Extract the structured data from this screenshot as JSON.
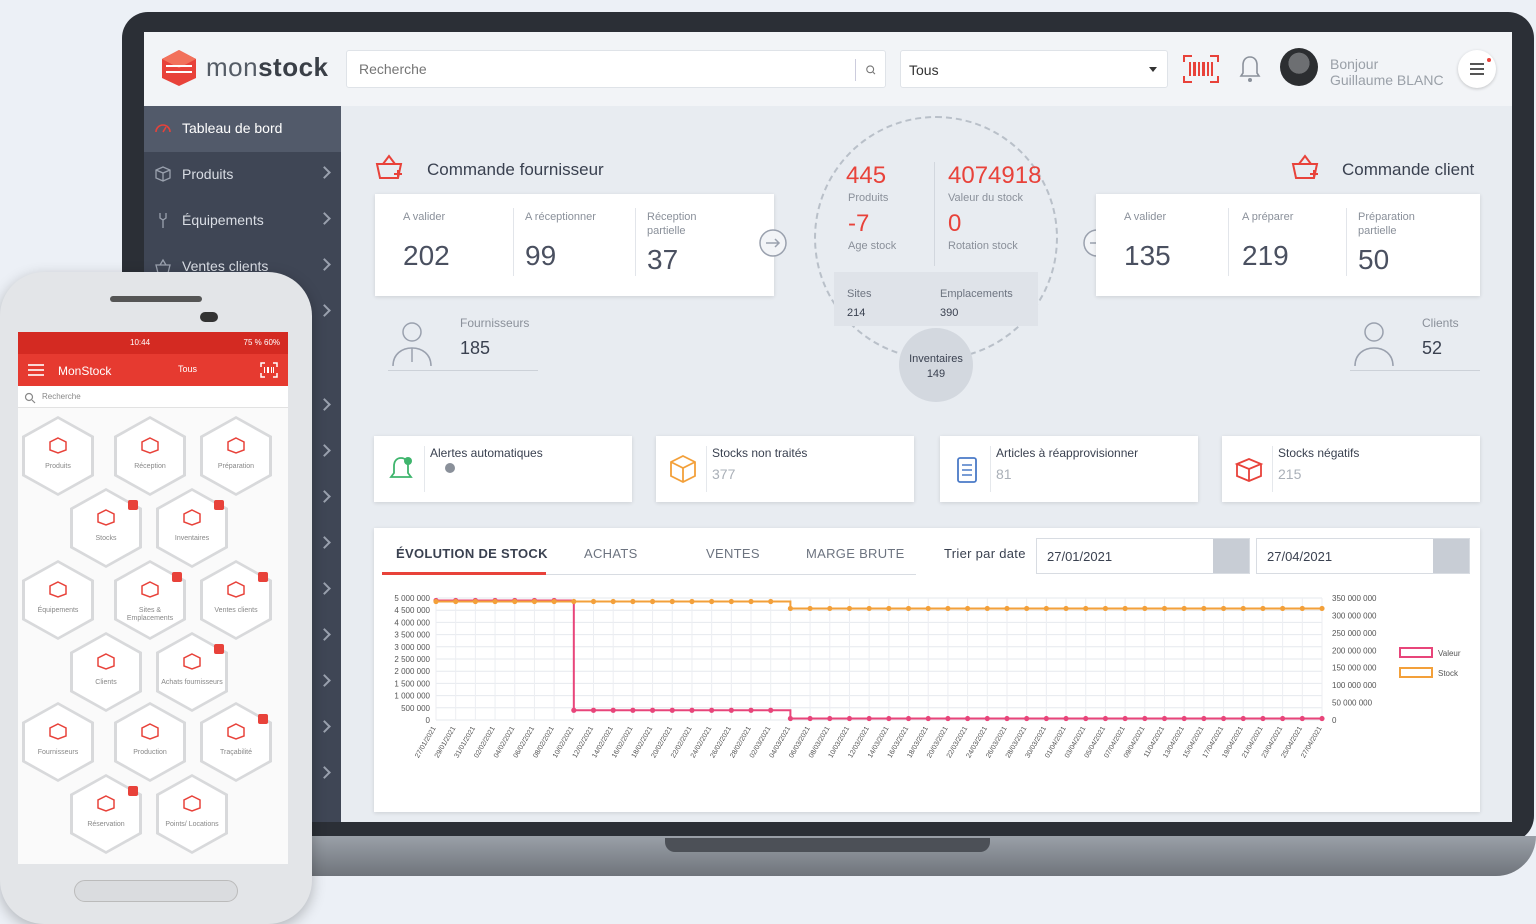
{
  "brand": {
    "name_light": "mon",
    "name_bold": "stock",
    "accent": "#e8423a"
  },
  "topbar": {
    "search_placeholder": "Recherche",
    "select_value": "Tous",
    "greeting_line1": "Bonjour",
    "greeting_line2": "Guillaume BLANC",
    "icons": [
      "barcode-scan-icon",
      "bell-icon",
      "menu-icon"
    ]
  },
  "sidebar": {
    "items": [
      {
        "label": "Tableau de bord",
        "icon": "gauge-icon",
        "active": true
      },
      {
        "label": "Produits",
        "icon": "box-icon"
      },
      {
        "label": "Équipements",
        "icon": "tool-icon"
      },
      {
        "label": "Ventes clients",
        "icon": "basket-icon"
      }
    ]
  },
  "supplier_orders": {
    "title": "Commande fournisseur",
    "kpis": [
      {
        "label": "A valider",
        "value": "202"
      },
      {
        "label": "A réceptionner",
        "value": "99"
      },
      {
        "label": "Réception partielle",
        "value": "37"
      }
    ],
    "suppliers": {
      "label": "Fournisseurs",
      "value": "185"
    }
  },
  "center": {
    "products": {
      "value": "445",
      "label": "Produits"
    },
    "stock_value": {
      "value": "4074918",
      "label": "Valeur du stock"
    },
    "stock_age": {
      "value": "-7",
      "label": "Age stock"
    },
    "rotation": {
      "value": "0",
      "label": "Rotation stock"
    },
    "sites": {
      "label": "Sites",
      "value": "214"
    },
    "locations": {
      "label": "Emplacements",
      "value": "390"
    },
    "inventories": {
      "label": "Inventaires",
      "value": "149"
    }
  },
  "client_orders": {
    "title": "Commande client",
    "kpis": [
      {
        "label": "A valider",
        "value": "135"
      },
      {
        "label": "A préparer",
        "value": "219"
      },
      {
        "label": "Préparation partielle",
        "value": "50"
      }
    ],
    "clients": {
      "label": "Clients",
      "value": "52"
    }
  },
  "alerts": [
    {
      "label": "Alertes automatiques",
      "value": "",
      "icon": "bell-alert-icon"
    },
    {
      "label": "Stocks non traités",
      "value": "377",
      "icon": "package-icon"
    },
    {
      "label": "Articles à réapprovisionner",
      "value": "81",
      "icon": "clipboard-icon"
    },
    {
      "label": "Stocks négatifs",
      "value": "215",
      "icon": "open-box-icon"
    }
  ],
  "chart_panel": {
    "tabs": [
      "ÉVOLUTION DE STOCK",
      "ACHATS",
      "VENTES",
      "MARGE BRUTE"
    ],
    "sort_label": "Trier par date",
    "date_from": "27/01/2021",
    "date_to": "27/04/2021"
  },
  "chart_data": {
    "type": "line",
    "x": [
      "27/01/2021",
      "29/01/2021",
      "31/01/2021",
      "02/02/2021",
      "04/02/2021",
      "06/02/2021",
      "08/02/2021",
      "10/02/2021",
      "12/02/2021",
      "14/02/2021",
      "16/02/2021",
      "18/02/2021",
      "20/02/2021",
      "22/02/2021",
      "24/02/2021",
      "26/02/2021",
      "28/02/2021",
      "02/03/2021",
      "04/03/2021",
      "06/03/2021",
      "08/03/2021",
      "10/03/2021",
      "12/03/2021",
      "14/03/2021",
      "16/03/2021",
      "18/03/2021",
      "20/03/2021",
      "22/03/2021",
      "24/03/2021",
      "26/03/2021",
      "28/03/2021",
      "30/03/2021",
      "01/04/2021",
      "03/04/2021",
      "05/04/2021",
      "07/04/2021",
      "09/04/2021",
      "11/04/2021",
      "13/04/2021",
      "15/04/2021",
      "17/04/2021",
      "19/04/2021",
      "21/04/2021",
      "23/04/2021",
      "25/04/2021",
      "27/04/2021"
    ],
    "series": [
      {
        "name": "Valeur",
        "color": "#e8457a",
        "axis": "left",
        "values": [
          4900000,
          4900000,
          4900000,
          4900000,
          4900000,
          4900000,
          4900000,
          400000,
          400000,
          400000,
          400000,
          400000,
          400000,
          400000,
          400000,
          400000,
          400000,
          400000,
          60000,
          60000,
          60000,
          60000,
          60000,
          60000,
          60000,
          60000,
          60000,
          60000,
          60000,
          60000,
          60000,
          60000,
          60000,
          60000,
          60000,
          60000,
          60000,
          60000,
          60000,
          60000,
          60000,
          60000,
          60000,
          60000,
          60000,
          60000
        ]
      },
      {
        "name": "Stock",
        "color": "#f3a03a",
        "axis": "right",
        "values": [
          340000000,
          340000000,
          340000000,
          340000000,
          340000000,
          340000000,
          340000000,
          340000000,
          340000000,
          340000000,
          340000000,
          340000000,
          340000000,
          340000000,
          340000000,
          340000000,
          340000000,
          340000000,
          320000000,
          320000000,
          320000000,
          320000000,
          320000000,
          320000000,
          320000000,
          320000000,
          320000000,
          320000000,
          320000000,
          320000000,
          320000000,
          320000000,
          320000000,
          320000000,
          320000000,
          320000000,
          320000000,
          320000000,
          320000000,
          320000000,
          320000000,
          320000000,
          320000000,
          320000000,
          320000000,
          320000000
        ]
      }
    ],
    "y_left_ticks": [
      "5 000 000",
      "4 500 000",
      "4 000 000",
      "3 500 000",
      "3 000 000",
      "2 500 000",
      "2 000 000",
      "1 500 000",
      "1 000 000",
      "500 000",
      "0"
    ],
    "y_right_ticks": [
      "350 000 000",
      "300 000 000",
      "250 000 000",
      "200 000 000",
      "150 000 000",
      "100 000 000",
      "50 000 000",
      "0"
    ],
    "ylim_left": [
      0,
      5000000
    ],
    "ylim_right": [
      0,
      350000000
    ],
    "legend_position": "right",
    "grid": true
  },
  "phone": {
    "status_time": "10:44",
    "status_right": "75 % 60%",
    "app_title": "MonStock",
    "filter": "Tous",
    "search_placeholder": "Recherche",
    "tiles": [
      "Produits",
      "Réception",
      "Préparation",
      "Stocks",
      "Inventaires",
      "Équipements",
      "Sites & Emplacements",
      "Ventes clients",
      "Clients",
      "Achats fournisseurs",
      "Fournisseurs",
      "Production",
      "Traçabilité",
      "Réservation",
      "Points/ Locations"
    ]
  }
}
